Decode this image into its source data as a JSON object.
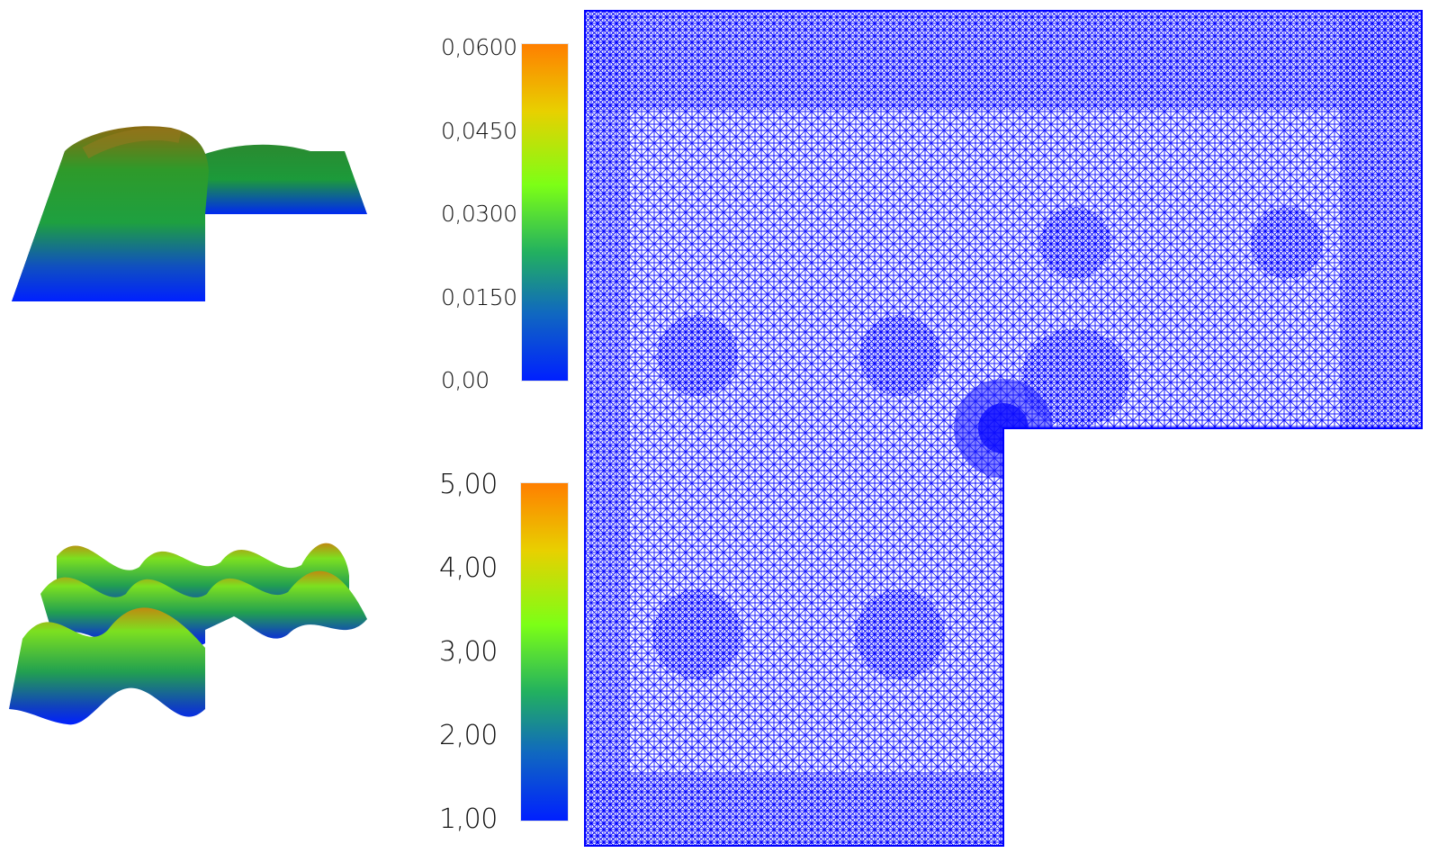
{
  "colorbar_top": {
    "ticks": [
      "0,0600",
      "0,0450",
      "0,0300",
      "0,0150",
      "0,00"
    ],
    "colors": [
      "#ff7f00",
      "#e8d000",
      "#7cff16",
      "#22b060",
      "#1068c0",
      "#0020ff"
    ]
  },
  "colorbar_bottom": {
    "ticks": [
      "5,00",
      "4,00",
      "3,00",
      "2,00",
      "1,00"
    ],
    "colors": [
      "#ff7f00",
      "#e8d000",
      "#7cff16",
      "#22b060",
      "#1068c0",
      "#0020ff"
    ]
  },
  "mesh": {
    "color": "#0000ff"
  }
}
